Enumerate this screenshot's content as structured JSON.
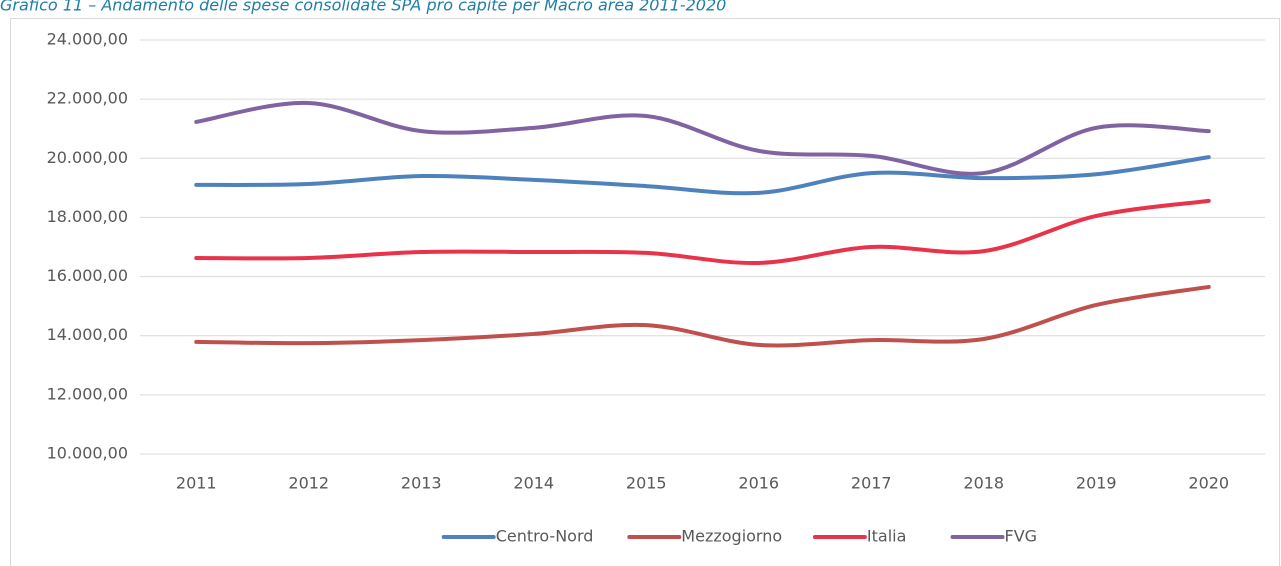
{
  "chart_data": {
    "type": "line",
    "title": "Grafico 11 – Andamento delle spese consolidate SPA pro capite per Macro area 2011-2020",
    "categories": [
      "2011",
      "2012",
      "2013",
      "2014",
      "2015",
      "2016",
      "2017",
      "2018",
      "2019",
      "2020"
    ],
    "series": [
      {
        "name": "Centro-Nord",
        "color": "#4f81bd",
        "values": [
          19100,
          19130,
          19400,
          19270,
          19060,
          18830,
          19500,
          19330,
          19460,
          20040
        ]
      },
      {
        "name": "Mezzogiorno",
        "color": "#c0504d",
        "values": [
          13790,
          13750,
          13850,
          14060,
          14360,
          13690,
          13850,
          13890,
          15040,
          15650
        ]
      },
      {
        "name": "Italia",
        "color": "#e8334a",
        "values": [
          16630,
          16630,
          16830,
          16830,
          16800,
          16460,
          17000,
          16860,
          18050,
          18560
        ]
      },
      {
        "name": "FVG",
        "color": "#8064a2",
        "values": [
          21230,
          21870,
          20920,
          21030,
          21430,
          20250,
          20080,
          19500,
          21030,
          20920
        ]
      }
    ],
    "ylim": [
      10000,
      24000
    ],
    "yticks": [
      {
        "value": 10000,
        "label": "10.000,00"
      },
      {
        "value": 12000,
        "label": "12.000,00"
      },
      {
        "value": 14000,
        "label": "14.000,00"
      },
      {
        "value": 16000,
        "label": "16.000,00"
      },
      {
        "value": 18000,
        "label": "18.000,00"
      },
      {
        "value": 20000,
        "label": "20.000,00"
      },
      {
        "value": 22000,
        "label": "22.000,00"
      },
      {
        "value": 24000,
        "label": "24.000,00"
      }
    ],
    "grid": true,
    "legend": "bottom"
  }
}
